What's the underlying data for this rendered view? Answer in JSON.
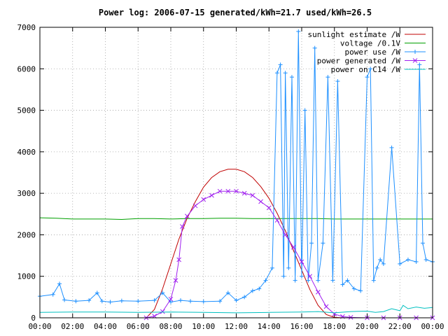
{
  "chart_data": {
    "type": "line",
    "title": "Power log: 2006-07-15 generated/kWh=21.7 used/kWh=26.5",
    "xlabel": "",
    "ylabel": "",
    "ylim": [
      0,
      7000
    ],
    "xlim": [
      0,
      24
    ],
    "grid": true,
    "legend_position": "top-right",
    "x_tick_labels": [
      "00:00",
      "02:00",
      "04:00",
      "06:00",
      "08:00",
      "10:00",
      "12:00",
      "14:00",
      "16:00",
      "18:00",
      "20:00",
      "22:00",
      "00:00"
    ],
    "y_tick_labels": [
      "0",
      "1000",
      "2000",
      "3000",
      "4000",
      "5000",
      "6000",
      "7000"
    ],
    "y_ticks": [
      0,
      1000,
      2000,
      3000,
      4000,
      5000,
      6000,
      7000
    ],
    "series": [
      {
        "name": "sunlight estimate /W",
        "color": "#c00000",
        "marker": "none",
        "x": [
          6.5,
          7.0,
          7.5,
          8.0,
          8.5,
          9.0,
          9.5,
          10.0,
          10.5,
          11.0,
          11.5,
          12.0,
          12.5,
          13.0,
          13.5,
          14.0,
          14.5,
          15.0,
          15.5,
          16.0,
          16.5,
          17.0,
          17.5,
          18.0,
          18.5
        ],
        "y": [
          0,
          200,
          700,
          1300,
          1900,
          2400,
          2800,
          3150,
          3380,
          3520,
          3580,
          3580,
          3520,
          3380,
          3160,
          2880,
          2520,
          2100,
          1620,
          1150,
          680,
          300,
          80,
          10,
          0
        ]
      },
      {
        "name": "voltage /0.1V",
        "color": "#00a000",
        "marker": "none",
        "x": [
          0,
          1,
          2,
          3,
          4,
          5,
          6,
          7,
          8,
          9,
          10,
          11,
          12,
          13,
          14,
          15,
          16,
          17,
          18,
          19,
          20,
          21,
          22,
          23,
          24
        ],
        "y": [
          2410,
          2400,
          2380,
          2380,
          2380,
          2370,
          2390,
          2390,
          2380,
          2390,
          2390,
          2400,
          2400,
          2390,
          2390,
          2390,
          2390,
          2390,
          2380,
          2380,
          2380,
          2380,
          2380,
          2380,
          2380
        ]
      },
      {
        "name": "power use /W",
        "color": "#1e90ff",
        "marker": "plus",
        "x": [
          0,
          0.8,
          1.2,
          1.5,
          2.2,
          3.0,
          3.5,
          3.8,
          4.3,
          5.0,
          6.0,
          7.0,
          7.5,
          8.0,
          8.6,
          9.2,
          10.0,
          11.0,
          11.5,
          12.0,
          12.5,
          13.0,
          13.4,
          13.8,
          14.2,
          14.5,
          14.7,
          14.9,
          15.0,
          15.2,
          15.4,
          15.6,
          15.8,
          16.0,
          16.2,
          16.4,
          16.6,
          16.8,
          17.0,
          17.3,
          17.6,
          17.9,
          18.2,
          18.5,
          18.8,
          19.2,
          19.6,
          20.0,
          20.2,
          20.4,
          20.6,
          20.8,
          21.0,
          21.5,
          22.0,
          22.5,
          23.0,
          23.2,
          23.4,
          23.6,
          24.0
        ],
        "y": [
          520,
          560,
          820,
          430,
          400,
          420,
          600,
          400,
          380,
          410,
          400,
          420,
          600,
          380,
          420,
          400,
          390,
          400,
          600,
          420,
          500,
          650,
          700,
          900,
          1200,
          5900,
          6100,
          1000,
          5900,
          1200,
          5800,
          900,
          6900,
          1000,
          5000,
          900,
          1800,
          6500,
          900,
          1800,
          5800,
          900,
          5700,
          800,
          900,
          700,
          650,
          5800,
          6000,
          900,
          1200,
          1400,
          1300,
          4100,
          1300,
          1400,
          1350,
          6100,
          1800,
          1400,
          1350
        ]
      },
      {
        "name": "power generated /W",
        "color": "#a020f0",
        "marker": "x",
        "x": [
          6.5,
          7.0,
          7.5,
          8.0,
          8.3,
          8.5,
          8.7,
          9.0,
          9.5,
          10.0,
          10.5,
          11.0,
          11.5,
          12.0,
          12.5,
          13.0,
          13.5,
          14.0,
          14.5,
          15.0,
          15.5,
          16.0,
          16.5,
          17.0,
          17.5,
          18.0,
          18.5,
          19.0,
          20.0,
          21.0,
          22.0,
          23.0,
          24.0
        ],
        "y": [
          0,
          40,
          150,
          450,
          900,
          1400,
          2200,
          2450,
          2700,
          2850,
          2950,
          3050,
          3050,
          3050,
          3000,
          2950,
          2800,
          2650,
          2350,
          2000,
          1700,
          1350,
          1000,
          620,
          270,
          90,
          30,
          10,
          0,
          0,
          0,
          0,
          0
        ]
      },
      {
        "name": "power on C14 /W",
        "color": "#00c0c0",
        "marker": "none",
        "x": [
          0,
          2,
          4,
          6,
          8,
          10,
          12,
          14,
          16,
          17,
          18,
          19,
          20,
          20.5,
          21.0,
          21.5,
          22.0,
          22.2,
          22.5,
          23.0,
          23.5,
          24.0
        ],
        "y": [
          130,
          140,
          140,
          130,
          140,
          130,
          120,
          130,
          140,
          150,
          120,
          150,
          160,
          130,
          150,
          220,
          170,
          300,
          220,
          260,
          230,
          250
        ]
      }
    ]
  }
}
